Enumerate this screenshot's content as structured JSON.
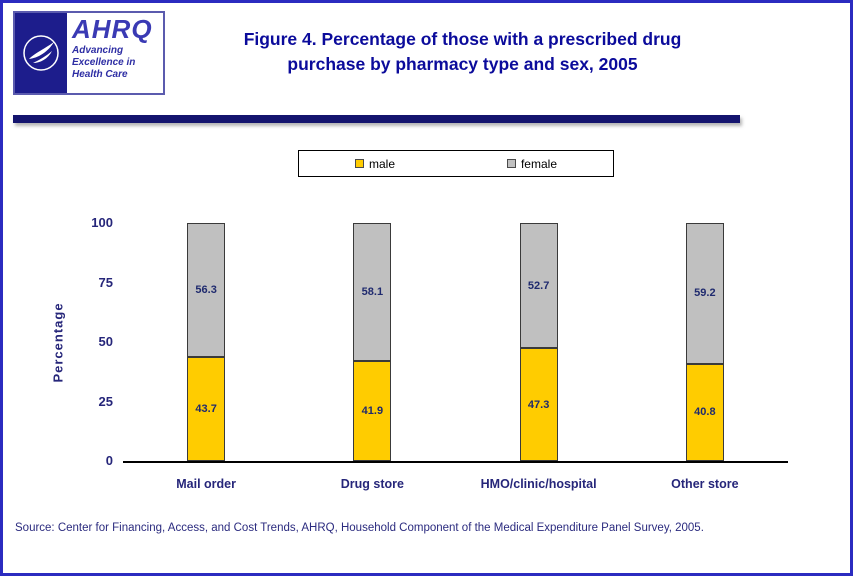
{
  "header": {
    "logo": {
      "org": "AHRQ",
      "tagline": "Advancing Excellence in Health Care"
    },
    "title": "Figure 4. Percentage of those with a prescribed drug purchase by pharmacy type and sex, 2005"
  },
  "colors": {
    "male": "#FFCC00",
    "female": "#C0C0C0",
    "title_navy": "#0B0B9B",
    "axis_navy": "#26267A",
    "divider_navy": "#14146E"
  },
  "chart_data": {
    "type": "bar",
    "stacked": true,
    "title": "Figure 4. Percentage of those with a prescribed drug purchase by pharmacy type and sex, 2005",
    "categories": [
      "Mail order",
      "Drug store",
      "HMO/clinic/hospital",
      "Other store"
    ],
    "series": [
      {
        "name": "male",
        "color": "#FFCC00",
        "values": [
          43.7,
          41.9,
          47.3,
          40.8
        ]
      },
      {
        "name": "female",
        "color": "#C0C0C0",
        "values": [
          56.3,
          58.1,
          52.7,
          59.2
        ]
      }
    ],
    "xlabel": "",
    "ylabel": "Percentage",
    "ylim": [
      0,
      100
    ],
    "yticks": [
      0,
      25,
      50,
      75,
      100
    ],
    "grid": false,
    "legend_position": "top",
    "value_labels": "inside-segments"
  },
  "source": "Source: Center for Financing, Access, and Cost Trends, AHRQ, Household Component of the Medical Expenditure Panel Survey, 2005."
}
